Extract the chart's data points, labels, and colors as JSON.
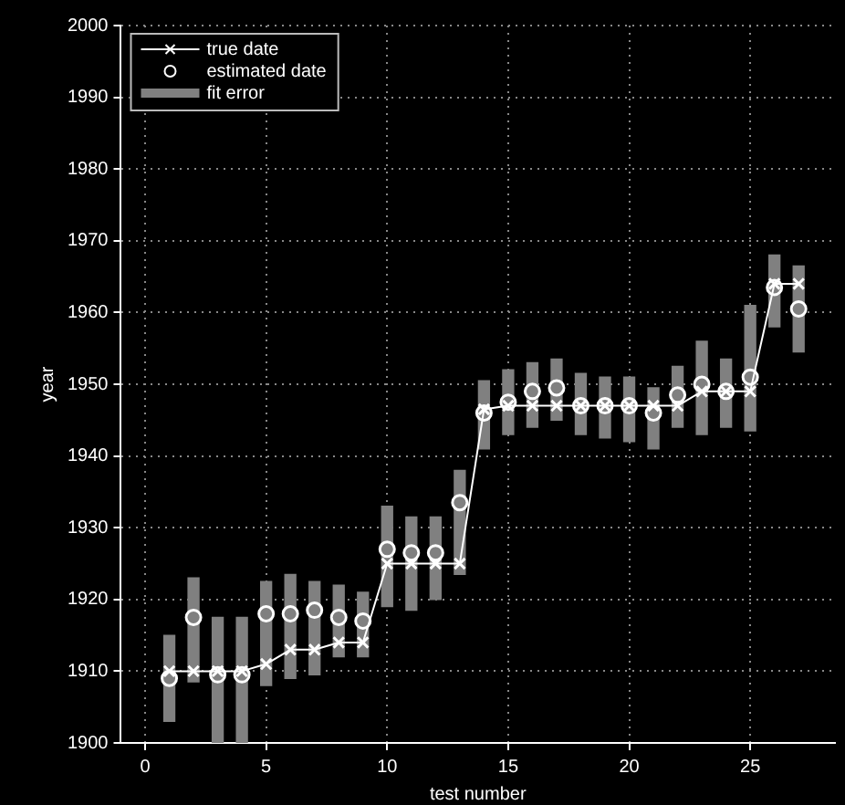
{
  "chart_data": {
    "type": "line",
    "xlabel": "test number",
    "ylabel": "year",
    "x": [
      1,
      2,
      3,
      4,
      5,
      6,
      7,
      8,
      9,
      10,
      11,
      12,
      13,
      14,
      15,
      16,
      17,
      18,
      19,
      20,
      21,
      22,
      23,
      24,
      25,
      26,
      27
    ],
    "xlim": [
      -1,
      28.5
    ],
    "xticks": [
      0,
      5,
      10,
      15,
      20,
      25
    ],
    "ylim": [
      1900,
      2000
    ],
    "yticks": [
      1900,
      1910,
      1920,
      1930,
      1940,
      1950,
      1960,
      1970,
      1980,
      1990,
      2000
    ],
    "grid": true,
    "legend": "top left",
    "series": [
      {
        "name": "true date",
        "color": "#ffffff",
        "marker": "cross",
        "line_style": "solid",
        "values": [
          1910,
          1910,
          1910,
          1910,
          1911,
          1913,
          1913,
          1914,
          1914,
          1925,
          1925,
          1925,
          1925,
          1946.5,
          1947,
          1947,
          1947,
          1947,
          1947,
          1947,
          1947,
          1947,
          1949,
          1949,
          1949,
          1964,
          1964
        ]
      },
      {
        "name": "estimated date",
        "type": "scatter",
        "color": "#ffffff",
        "marker": "circle",
        "values": [
          1909,
          1917.5,
          1909.5,
          1909.5,
          1918,
          1918,
          1918.5,
          1917.5,
          1917,
          1927,
          1926.5,
          1926.5,
          1933.5,
          1946,
          1947.5,
          1949,
          1949.5,
          1947,
          1947,
          1947,
          1946,
          1948.5,
          1950,
          1949,
          1951,
          1963.5,
          1960.5
        ]
      },
      {
        "name": "fit error",
        "type": "bar",
        "color": "#808080",
        "base": [
          1903,
          1908.5,
          1900,
          1900,
          1908,
          1909,
          1909.5,
          1912,
          1912,
          1919,
          1918.5,
          1920,
          1923.5,
          1941,
          1943,
          1944,
          1945,
          1943,
          1942.5,
          1942,
          1941,
          1944,
          1943,
          1944,
          1943.5,
          1958,
          1954.5
        ],
        "values": [
          12,
          14.5,
          17.5,
          17.5,
          14.5,
          14.5,
          13,
          10,
          9,
          14,
          13,
          11.5,
          14.5,
          9.5,
          9,
          9,
          8.5,
          8.5,
          8.5,
          9,
          8.5,
          8.5,
          13,
          9.5,
          17.5,
          10,
          12
        ]
      }
    ]
  }
}
